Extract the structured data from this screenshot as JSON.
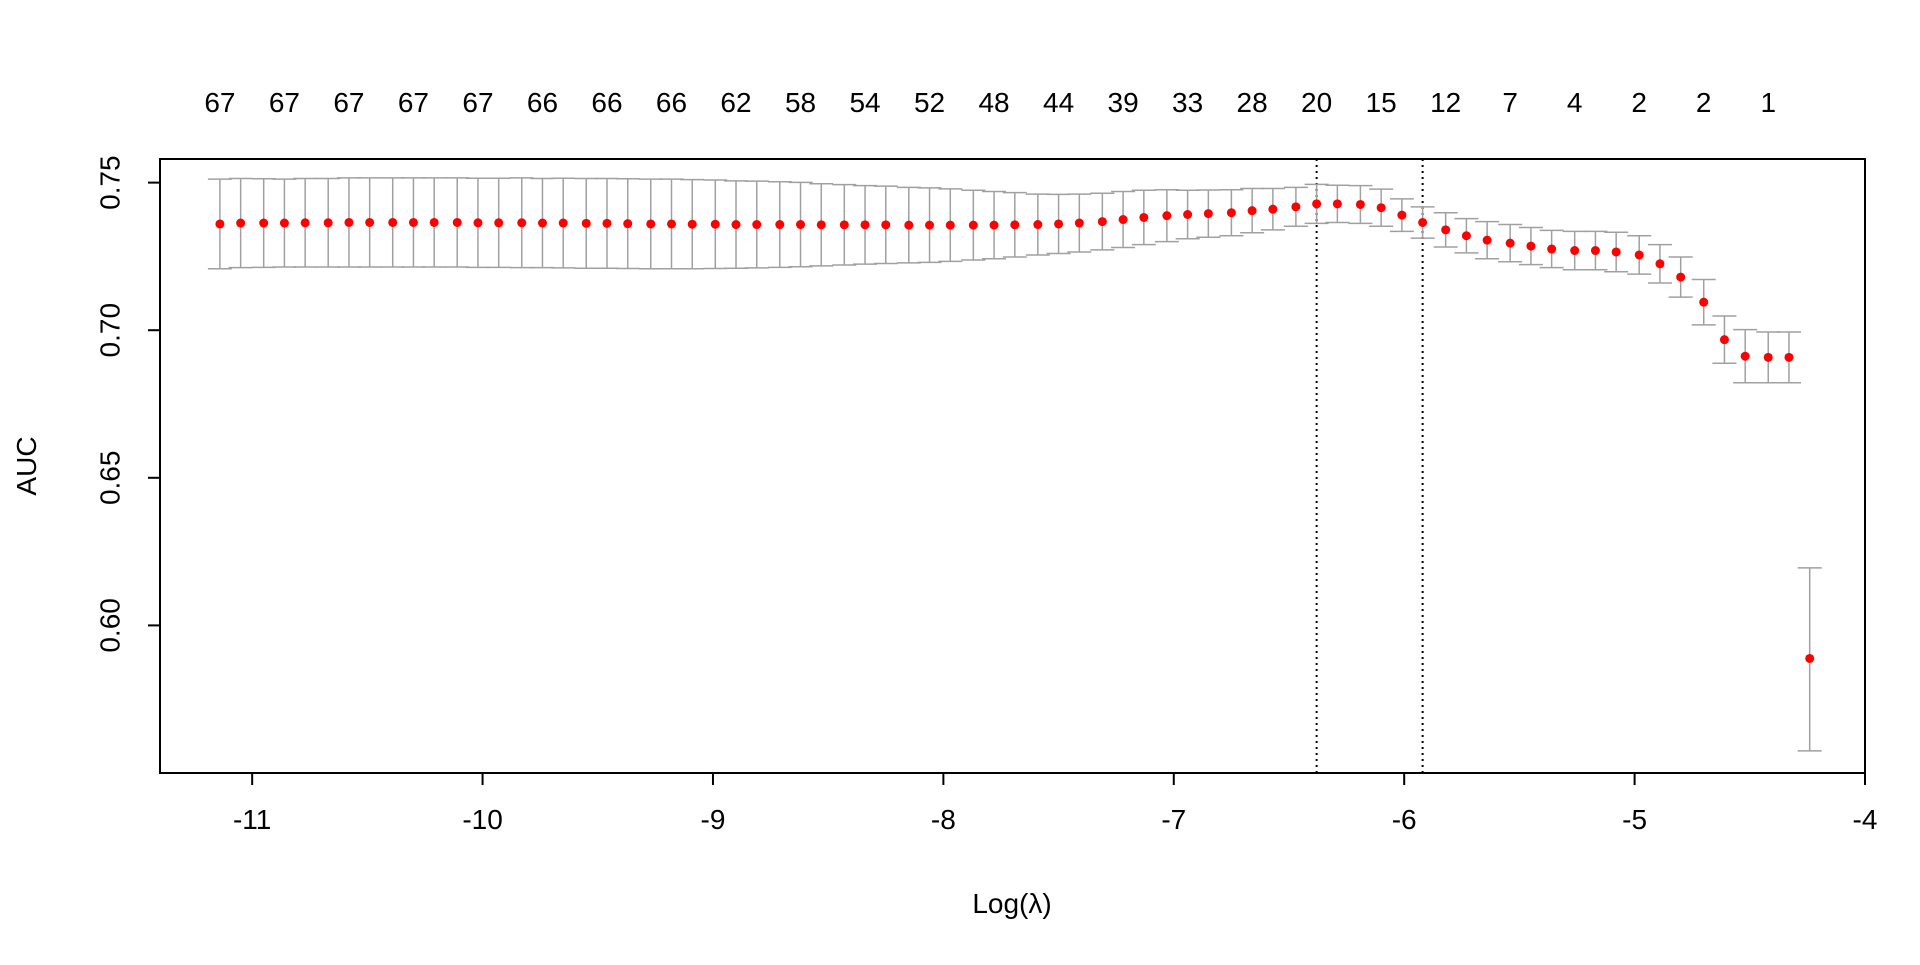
{
  "chart_data": {
    "type": "scatter",
    "title": "",
    "xlabel": "Log(λ)",
    "ylabel": "AUC",
    "xlim": [
      -11.4,
      -4.0
    ],
    "ylim": [
      0.55,
      0.758
    ],
    "x_ticks": [
      -11,
      -10,
      -9,
      -8,
      -7,
      -6,
      -5,
      -4
    ],
    "x_tick_labels": [
      "-11",
      "-10",
      "-9",
      "-8",
      "-7",
      "-6",
      "-5",
      "-4"
    ],
    "y_ticks": [
      0.6,
      0.65,
      0.7,
      0.75
    ],
    "y_tick_labels": [
      "0.60",
      "0.65",
      "0.70",
      "0.75"
    ],
    "top_axis_label": "",
    "top_axis_labels": [
      {
        "x": -11.14,
        "label": "67"
      },
      {
        "x": -10.86,
        "label": "67"
      },
      {
        "x": -10.58,
        "label": "67"
      },
      {
        "x": -10.3,
        "label": "67"
      },
      {
        "x": -10.02,
        "label": "67"
      },
      {
        "x": -9.74,
        "label": "66"
      },
      {
        "x": -9.46,
        "label": "66"
      },
      {
        "x": -9.18,
        "label": "66"
      },
      {
        "x": -8.9,
        "label": "62"
      },
      {
        "x": -8.62,
        "label": "58"
      },
      {
        "x": -8.34,
        "label": "54"
      },
      {
        "x": -8.06,
        "label": "52"
      },
      {
        "x": -7.78,
        "label": "48"
      },
      {
        "x": -7.5,
        "label": "44"
      },
      {
        "x": -7.22,
        "label": "39"
      },
      {
        "x": -6.94,
        "label": "33"
      },
      {
        "x": -6.66,
        "label": "28"
      },
      {
        "x": -6.38,
        "label": "20"
      },
      {
        "x": -6.1,
        "label": "15"
      },
      {
        "x": -5.82,
        "label": "12"
      },
      {
        "x": -5.54,
        "label": "7"
      },
      {
        "x": -5.26,
        "label": "4"
      },
      {
        "x": -4.98,
        "label": "2"
      },
      {
        "x": -4.7,
        "label": "2"
      },
      {
        "x": -4.42,
        "label": "1"
      }
    ],
    "vlines": [
      {
        "x": -6.38,
        "style": "dotted"
      },
      {
        "x": -5.92,
        "style": "dotted"
      }
    ],
    "point_color": "#ff0000",
    "errorbar_color": "#a0a0a0",
    "series": [
      {
        "x": [
          -11.14,
          -11.05,
          -10.95,
          -10.86,
          -10.77,
          -10.67,
          -10.58,
          -10.49,
          -10.39,
          -10.3,
          -10.21,
          -10.11,
          -10.02,
          -9.93,
          -9.83,
          -9.74,
          -9.65,
          -9.55,
          -9.46,
          -9.37,
          -9.27,
          -9.18,
          -9.09,
          -8.99,
          -8.9,
          -8.81,
          -8.71,
          -8.62,
          -8.53,
          -8.43,
          -8.34,
          -8.25,
          -8.15,
          -8.06,
          -7.97,
          -7.87,
          -7.78,
          -7.69,
          -7.59,
          -7.5,
          -7.41,
          -7.31,
          -7.22,
          -7.13,
          -7.03,
          -6.94,
          -6.85,
          -6.75,
          -6.66,
          -6.57,
          -6.47,
          -6.38,
          -6.29,
          -6.19,
          -6.1,
          -6.01,
          -5.92,
          -5.82,
          -5.73,
          -5.64,
          -5.54,
          -5.45,
          -5.36,
          -5.26,
          -5.17,
          -5.08,
          -4.98,
          -4.89,
          -4.8,
          -4.7,
          -4.61,
          -4.52,
          -4.42,
          -4.33,
          -4.24
        ],
        "y": [
          0.736,
          0.7363,
          0.7363,
          0.7363,
          0.7364,
          0.7364,
          0.7365,
          0.7365,
          0.7365,
          0.7365,
          0.7365,
          0.7365,
          0.7364,
          0.7364,
          0.7364,
          0.7363,
          0.7363,
          0.7362,
          0.7362,
          0.7361,
          0.736,
          0.736,
          0.7359,
          0.7359,
          0.7358,
          0.7358,
          0.7358,
          0.7358,
          0.7357,
          0.7357,
          0.7357,
          0.7357,
          0.7356,
          0.7356,
          0.7356,
          0.7356,
          0.7356,
          0.7357,
          0.7358,
          0.736,
          0.7363,
          0.7368,
          0.7375,
          0.7382,
          0.7388,
          0.7392,
          0.7395,
          0.7398,
          0.7405,
          0.741,
          0.7418,
          0.7428,
          0.7428,
          0.7426,
          0.7415,
          0.739,
          0.7365,
          0.734,
          0.732,
          0.7305,
          0.7295,
          0.7285,
          0.7275,
          0.727,
          0.727,
          0.7265,
          0.7255,
          0.7225,
          0.718,
          0.7095,
          0.6968,
          0.6912,
          0.6908,
          0.6908,
          0.5888
        ],
        "lower": [
          0.7208,
          0.7212,
          0.7213,
          0.7214,
          0.7214,
          0.7214,
          0.7214,
          0.7214,
          0.7214,
          0.7214,
          0.7214,
          0.7214,
          0.7213,
          0.7213,
          0.7212,
          0.7212,
          0.7211,
          0.721,
          0.721,
          0.7209,
          0.7208,
          0.7208,
          0.7208,
          0.7209,
          0.721,
          0.7211,
          0.7213,
          0.7215,
          0.7218,
          0.7221,
          0.7224,
          0.7226,
          0.7228,
          0.723,
          0.7233,
          0.7238,
          0.7242,
          0.7248,
          0.7255,
          0.726,
          0.7265,
          0.7272,
          0.728,
          0.729,
          0.73,
          0.731,
          0.7315,
          0.732,
          0.733,
          0.734,
          0.7352,
          0.7362,
          0.7365,
          0.7362,
          0.7352,
          0.7335,
          0.7312,
          0.7282,
          0.7262,
          0.7242,
          0.7232,
          0.7222,
          0.7212,
          0.7205,
          0.7205,
          0.7198,
          0.719,
          0.716,
          0.7112,
          0.7018,
          0.6888,
          0.6822,
          0.6822,
          0.6822,
          0.5575
        ],
        "upper": [
          0.7512,
          0.7514,
          0.7513,
          0.7512,
          0.7514,
          0.7514,
          0.7516,
          0.7516,
          0.7516,
          0.7516,
          0.7516,
          0.7516,
          0.7515,
          0.7515,
          0.7516,
          0.7514,
          0.7515,
          0.7514,
          0.7514,
          0.7513,
          0.7512,
          0.7512,
          0.751,
          0.7509,
          0.7506,
          0.7505,
          0.7503,
          0.7501,
          0.7496,
          0.7493,
          0.749,
          0.7488,
          0.7484,
          0.7482,
          0.7479,
          0.7474,
          0.747,
          0.7466,
          0.7461,
          0.746,
          0.7461,
          0.7464,
          0.747,
          0.7474,
          0.7476,
          0.7474,
          0.7475,
          0.7476,
          0.748,
          0.748,
          0.7484,
          0.7494,
          0.7491,
          0.749,
          0.7478,
          0.7445,
          0.7418,
          0.7398,
          0.7378,
          0.7368,
          0.7358,
          0.7348,
          0.7338,
          0.7335,
          0.7335,
          0.7332,
          0.732,
          0.729,
          0.7248,
          0.7172,
          0.7048,
          0.7002,
          0.6994,
          0.6994,
          0.6195
        ]
      }
    ]
  }
}
